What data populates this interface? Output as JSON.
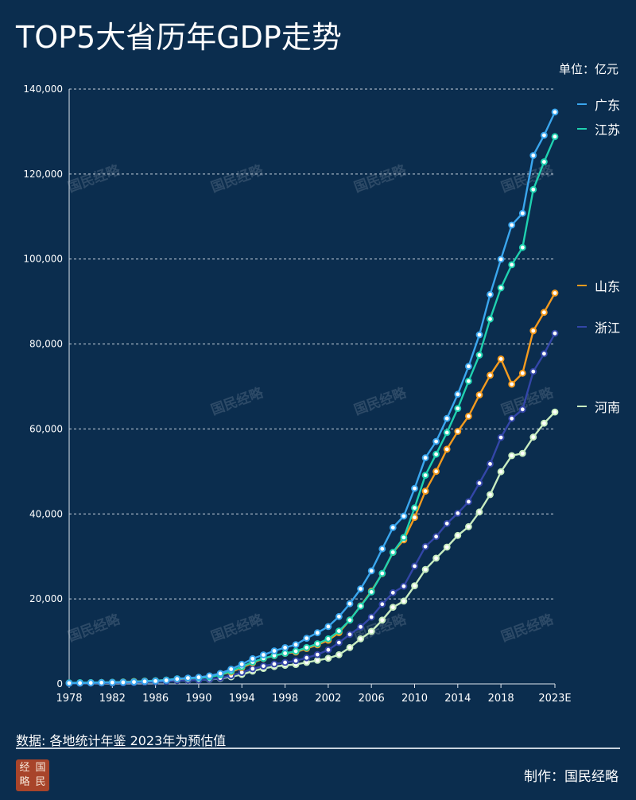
{
  "title": "TOP5大省历年GDP走势",
  "unit_label": "单位：亿元",
  "source": "数据: 各地统计年鉴 2023年为预估值",
  "credit": "制作：国民经略",
  "seal_chars": [
    "经",
    "国",
    "略",
    "民"
  ],
  "watermark_text": "国民经略",
  "colors": {
    "background": "#0b2d4e",
    "grid": "#c9d3de",
    "axis": "#dfe6ee"
  },
  "chart_data": {
    "type": "line",
    "ylim": [
      0,
      140000
    ],
    "yticks": [
      0,
      20000,
      40000,
      60000,
      80000,
      100000,
      120000,
      140000
    ],
    "ytick_labels": [
      "0",
      "20,000",
      "40,000",
      "60,000",
      "80,000",
      "100,000",
      "120,000",
      "140,000"
    ],
    "x_start": 1978,
    "x_end": 2023,
    "xtick_years": [
      1978,
      1982,
      1986,
      1990,
      1994,
      1998,
      2002,
      2006,
      2010,
      2014,
      2018,
      2023
    ],
    "xtick_labels": [
      "1978",
      "1982",
      "1986",
      "1990",
      "1994",
      "1998",
      "2002",
      "2006",
      "2010",
      "2014",
      "2018",
      "2023E"
    ],
    "grid": true,
    "legend_position": "right",
    "series": [
      {
        "name": "广东",
        "color": "#3aa6ee",
        "values": [
          186,
          209,
          250,
          291,
          340,
          369,
          458,
          577,
          667,
          847,
          1155,
          1381,
          1560,
          1893,
          2448,
          3469,
          4619,
          5934,
          6834,
          7774,
          8531,
          9251,
          10741,
          12039,
          13502,
          15845,
          18865,
          22367,
          26588,
          31777,
          36797,
          39483,
          46013,
          53210,
          57068,
          62475,
          68173,
          74732,
          82163,
          91648,
          99945,
          107987,
          110761,
          124370,
          129119,
          134600
        ]
      },
      {
        "name": "江苏",
        "color": "#1fd1b0",
        "values": [
          249,
          298,
          320,
          350,
          390,
          438,
          518,
          652,
          744,
          922,
          1208,
          1322,
          1417,
          1601,
          2136,
          2998,
          4057,
          5155,
          6004,
          6680,
          7200,
          7698,
          8554,
          9457,
          10607,
          12443,
          15004,
          18306,
          21645,
          26018,
          30982,
          34457,
          41425,
          49110,
          54058,
          59162,
          64830,
          71255,
          77388,
          85870,
          93208,
          98657,
          102719,
          116364,
          122876,
          128800
        ]
      },
      {
        "name": "山东",
        "color": "#f59b1e",
        "values": [
          225,
          252,
          292,
          346,
          396,
          460,
          582,
          681,
          742,
          893,
          1118,
          1294,
          1511,
          1810,
          2197,
          2770,
          3845,
          4953,
          5960,
          6650,
          7162,
          7493,
          8337,
          9195,
          10276,
          12078,
          15022,
          18367,
          21847,
          25966,
          30933,
          33897,
          39170,
          45362,
          50013,
          55230,
          59427,
          63002,
          68024,
          72634,
          76470,
          70541,
          73129,
          83096,
          87435,
          92000
        ]
      },
      {
        "name": "浙江",
        "color": "#3346a8",
        "values": [
          124,
          157,
          180,
          204,
          234,
          257,
          323,
          429,
          502,
          607,
          770,
          849,
          904,
          1089,
          1375,
          1925,
          2689,
          3557,
          4188,
          4686,
          5053,
          5443,
          6141,
          6898,
          8004,
          9705,
          11649,
          13418,
          15718,
          18754,
          21463,
          22990,
          27722,
          32319,
          34665,
          37757,
          40173,
          42886,
          47251,
          51768,
          58003,
          62462,
          64613,
          73516,
          77715,
          82500
        ]
      },
      {
        "name": "河南",
        "color": "#c8ecc0",
        "values": [
          163,
          190,
          229,
          249,
          263,
          328,
          370,
          451,
          502,
          610,
          749,
          851,
          935,
          1045,
          1280,
          1661,
          2217,
          3003,
          3634,
          4079,
          4357,
          4576,
          5053,
          5533,
          6035,
          6868,
          8554,
          10587,
          12362,
          15012,
          18019,
          19480,
          23092,
          26931,
          29599,
          32191,
          34938,
          37002,
          40472,
          44553,
          49936,
          53718,
          54259,
          58071,
          61345,
          64000
        ]
      }
    ]
  }
}
